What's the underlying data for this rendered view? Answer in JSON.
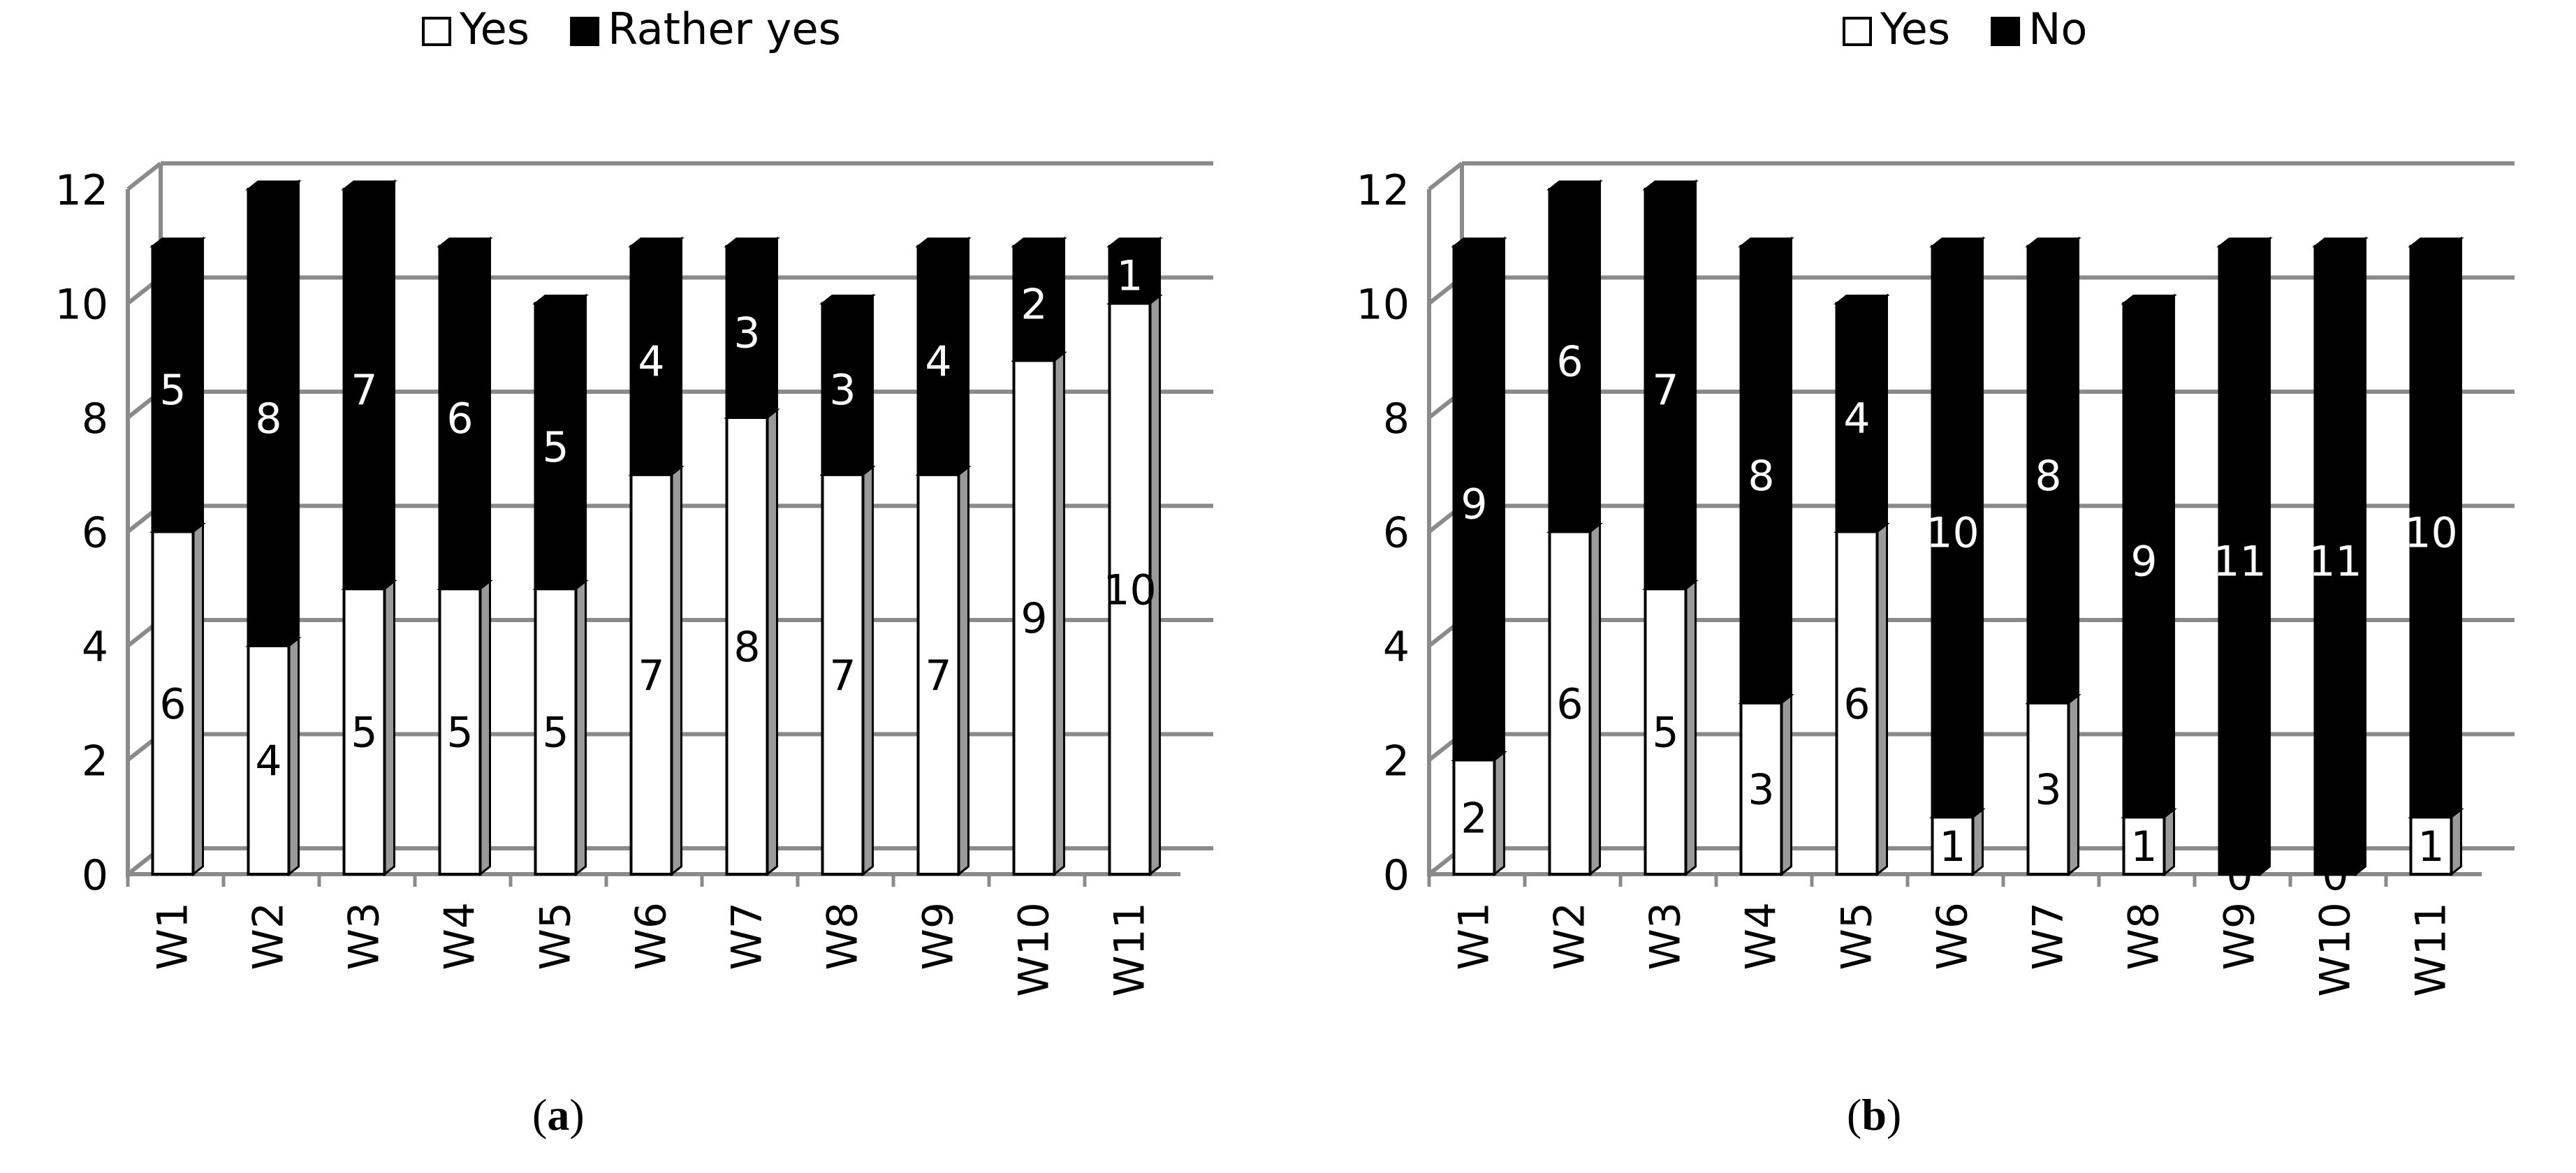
{
  "chart_data": [
    {
      "type": "bar",
      "stacked": true,
      "panel_label": "a",
      "categories": [
        "W1",
        "W2",
        "W3",
        "W4",
        "W5",
        "W6",
        "W7",
        "W8",
        "W9",
        "W10",
        "W11"
      ],
      "series": [
        {
          "name": "Yes",
          "color": "#ffffff",
          "values": [
            6,
            4,
            5,
            5,
            5,
            7,
            8,
            7,
            7,
            9,
            10
          ]
        },
        {
          "name": "Rather yes",
          "color": "#000000",
          "values": [
            5,
            8,
            7,
            6,
            5,
            4,
            3,
            3,
            4,
            2,
            1
          ]
        }
      ],
      "ylim": [
        0,
        12
      ],
      "yticks": [
        0,
        2,
        4,
        6,
        8,
        10,
        12
      ],
      "grid": true,
      "legend": "top"
    },
    {
      "type": "bar",
      "stacked": true,
      "panel_label": "b",
      "categories": [
        "W1",
        "W2",
        "W3",
        "W4",
        "W5",
        "W6",
        "W7",
        "W8",
        "W9",
        "W10",
        "W11"
      ],
      "series": [
        {
          "name": "Yes",
          "color": "#ffffff",
          "values": [
            2,
            6,
            5,
            3,
            6,
            1,
            3,
            1,
            0,
            0,
            1
          ]
        },
        {
          "name": "No",
          "color": "#000000",
          "values": [
            9,
            6,
            7,
            8,
            4,
            10,
            8,
            9,
            11,
            11,
            10
          ]
        }
      ],
      "ylim": [
        0,
        12
      ],
      "yticks": [
        0,
        2,
        4,
        6,
        8,
        10,
        12
      ],
      "grid": true,
      "legend": "top"
    }
  ]
}
